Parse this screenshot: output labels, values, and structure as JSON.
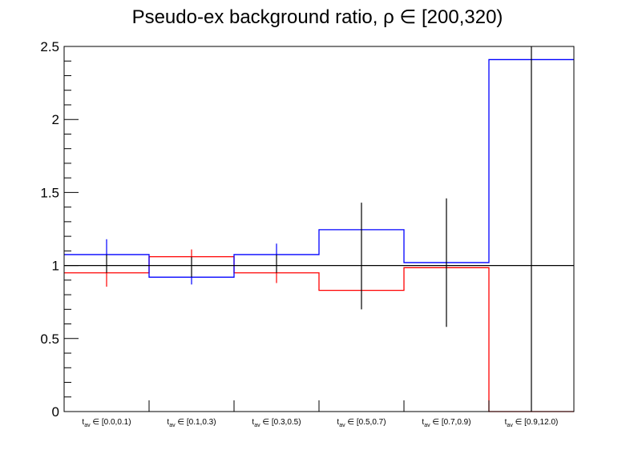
{
  "chart_data": {
    "type": "step-histogram",
    "title": "Pseudo-ex background ratio,   ρ ∈ [200,320)",
    "xlabel": "",
    "ylabel": "",
    "ylim": [
      0,
      2.5
    ],
    "yticks": [
      "0",
      "0.5",
      "1",
      "1.5",
      "2",
      "2.5"
    ],
    "categories": [
      {
        "sub": "av",
        "text": " ∈ [0.0,0.1)"
      },
      {
        "sub": "av",
        "text": " ∈ [0.1,0.3)"
      },
      {
        "sub": "av",
        "text": " ∈ [0.3,0.5)"
      },
      {
        "sub": "av",
        "text": " ∈ [0.5,0.7)"
      },
      {
        "sub": "av",
        "text": " ∈ [0.7,0.9)"
      },
      {
        "sub": "av",
        "text": " ∈ [0.9,12.0)"
      }
    ],
    "category_prefix": "t",
    "reference_line": 1.0,
    "series": [
      {
        "name": "red",
        "color": "#ff0000",
        "values": [
          0.95,
          1.06,
          0.95,
          0.83,
          0.985,
          0.0
        ],
        "errors": [
          [
            0.855,
            0.95
          ],
          [
            1.06,
            1.11
          ],
          [
            0.88,
            0.95
          ],
          null,
          null,
          null
        ]
      },
      {
        "name": "blue",
        "color": "#0000ff",
        "values": [
          1.075,
          0.92,
          1.075,
          1.245,
          1.02,
          2.41
        ],
        "errors": [
          [
            1.075,
            1.18
          ],
          [
            0.87,
            0.92
          ],
          [
            1.075,
            1.15
          ],
          null,
          null,
          null
        ]
      },
      {
        "name": "black",
        "color": "#000000",
        "values": [
          1,
          1,
          1,
          1,
          1,
          1
        ],
        "errors": [
          [
            0.95,
            1.075
          ],
          [
            0.92,
            1.06
          ],
          [
            0.95,
            1.075
          ],
          [
            0.7,
            1.43
          ],
          [
            0.58,
            1.46
          ],
          [
            0.0,
            2.5
          ]
        ]
      }
    ],
    "grid": false
  }
}
